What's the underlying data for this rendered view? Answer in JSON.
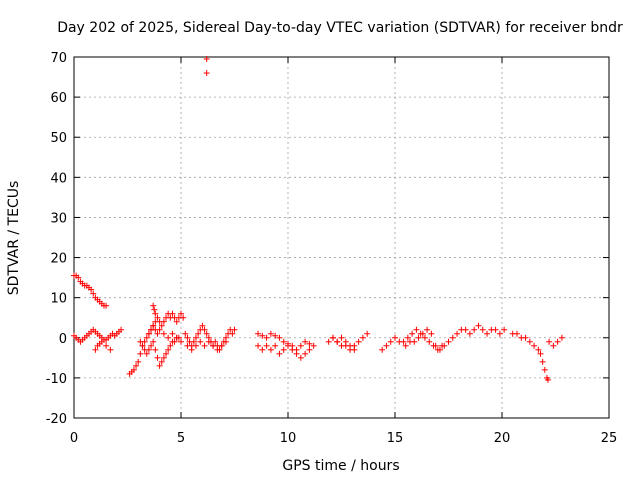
{
  "chart_data": {
    "type": "scatter",
    "title": "Day 202 of 2025, Sidereal Day-to-day VTEC variation (SDTVAR) for receiver bndr",
    "xlabel": "GPS time / hours",
    "ylabel": "SDTVAR / TECUs",
    "xlim": [
      0,
      25
    ],
    "ylim": [
      -20,
      70
    ],
    "xticks": [
      0,
      5,
      10,
      15,
      20,
      25
    ],
    "yticks": [
      -20,
      -10,
      0,
      10,
      20,
      30,
      40,
      50,
      60,
      70
    ],
    "grid": true,
    "marker": "plus",
    "color": "#ff0000",
    "series": [
      {
        "name": "bndr",
        "x": [
          0.0,
          0.1,
          0.2,
          0.3,
          0.4,
          0.5,
          0.6,
          0.7,
          0.8,
          0.9,
          1.0,
          1.1,
          1.2,
          1.3,
          1.4,
          1.5,
          0.0,
          0.1,
          0.2,
          0.3,
          0.4,
          0.5,
          0.6,
          0.7,
          0.8,
          0.9,
          1.0,
          1.1,
          1.2,
          1.3,
          1.4,
          1.5,
          1.6,
          1.7,
          1.8,
          1.9,
          2.0,
          2.1,
          2.2,
          1.0,
          1.1,
          1.2,
          1.3,
          1.5,
          1.7,
          2.6,
          2.7,
          2.8,
          2.9,
          3.0,
          3.1,
          3.2,
          3.3,
          3.4,
          3.5,
          3.6,
          3.7,
          3.8,
          3.9,
          4.0,
          4.1,
          4.2,
          4.3,
          4.4,
          4.5,
          4.6,
          4.7,
          4.8,
          4.9,
          5.0,
          5.1,
          3.1,
          3.2,
          3.3,
          3.4,
          3.5,
          3.6,
          3.7,
          3.8,
          3.9,
          4.0,
          4.1,
          4.2,
          4.3,
          4.4,
          4.5,
          4.6,
          4.7,
          4.8,
          4.9,
          5.0,
          3.5,
          3.6,
          3.7,
          3.8,
          3.9,
          4.0,
          4.2,
          4.4,
          4.6,
          4.8,
          3.7,
          3.75,
          3.8,
          5.2,
          5.3,
          5.4,
          5.5,
          5.6,
          5.7,
          5.8,
          5.9,
          6.0,
          6.1,
          6.2,
          6.3,
          6.4,
          6.5,
          6.6,
          6.7,
          6.8,
          6.9,
          7.0,
          7.1,
          7.2,
          7.3,
          7.4,
          7.5,
          5.3,
          5.5,
          5.7,
          5.9,
          6.1,
          6.3,
          6.5,
          6.7,
          6.9,
          7.1,
          6.2,
          6.2,
          8.6,
          8.8,
          9.0,
          9.2,
          9.4,
          9.6,
          9.8,
          10.0,
          10.2,
          10.4,
          10.6,
          10.8,
          11.0,
          11.2,
          8.6,
          8.8,
          9.0,
          9.2,
          9.4,
          9.6,
          9.8,
          10.0,
          10.2,
          10.4,
          10.6,
          10.8,
          11.0,
          11.9,
          12.1,
          12.3,
          12.5,
          12.7,
          12.9,
          13.1,
          13.3,
          13.5,
          13.7,
          12.1,
          12.3,
          12.5,
          12.7,
          12.9,
          13.1,
          14.4,
          14.6,
          14.8,
          15.0,
          15.2,
          15.4,
          15.6,
          15.8,
          16.0,
          16.2,
          16.4,
          16.6,
          16.8,
          17.0,
          17.2,
          15.5,
          15.7,
          15.9,
          16.1,
          16.3,
          16.5,
          16.7,
          16.9,
          17.1,
          17.3,
          17.5,
          17.7,
          17.9,
          18.1,
          18.3,
          18.5,
          18.7,
          18.9,
          19.1,
          19.3,
          19.5,
          19.7,
          19.9,
          20.1,
          20.5,
          20.7,
          20.9,
          21.1,
          21.3,
          21.5,
          21.7,
          21.8,
          21.9,
          22.0,
          22.1,
          22.15,
          22.2,
          22.4,
          22.6,
          22.8
        ],
        "y": [
          15.5,
          15.5,
          15,
          14,
          13.5,
          13,
          13,
          12.5,
          12,
          11,
          10,
          9.5,
          9,
          8.5,
          8,
          8,
          0.5,
          0,
          -0.5,
          -1,
          -0.5,
          0,
          0.5,
          1,
          1.5,
          2,
          1.5,
          1,
          0.5,
          0,
          -0.5,
          -0.5,
          0,
          0.5,
          1,
          0.5,
          1,
          1.5,
          2,
          -3,
          -2,
          -1.5,
          -1,
          -2,
          -3,
          -9,
          -8.5,
          -8,
          -7,
          -6,
          -4,
          -2,
          -1,
          0,
          1,
          2,
          3,
          4,
          5,
          4,
          3,
          4,
          5,
          6,
          5,
          6,
          5,
          4,
          5,
          6,
          5,
          -1,
          -2,
          -3,
          -4,
          -3,
          -2,
          -1,
          -3,
          -5,
          -7,
          -6,
          -5,
          -4,
          -3,
          -2,
          -1,
          -1,
          0,
          0,
          -1,
          1,
          2,
          3,
          2,
          1,
          2,
          1,
          0,
          1,
          0,
          8,
          7,
          6,
          1,
          0,
          -1,
          -2,
          -1,
          0,
          1,
          2,
          3,
          2,
          1,
          0,
          -1,
          -2,
          -1,
          -2,
          -3,
          -2,
          -1,
          0,
          1,
          2,
          1,
          2,
          -2,
          -3,
          -2,
          -1,
          -2,
          -1,
          -2,
          -3,
          -2,
          -1,
          69.5,
          66,
          1,
          0.5,
          0,
          1,
          0.5,
          0,
          -1,
          -1.5,
          -2,
          -3,
          -2,
          -1,
          -1.5,
          -2,
          -2,
          -3,
          -2,
          -3,
          -2,
          -4,
          -3,
          -2,
          -3,
          -4,
          -5,
          -4,
          -3,
          -1,
          0,
          -1,
          -2,
          -1,
          -2,
          -3,
          -1,
          0,
          1,
          0,
          -1,
          0,
          -2,
          -3,
          -2,
          -3,
          -2,
          -1,
          0,
          -1,
          -1,
          0,
          1,
          2,
          1,
          0,
          -1,
          -2,
          -3,
          -2,
          -2,
          -1,
          -1,
          0,
          1,
          2,
          1,
          -2,
          -3,
          -2,
          -1,
          0,
          1,
          2,
          2,
          1,
          2,
          3,
          2,
          1,
          2,
          2,
          1,
          2,
          1,
          1,
          0,
          0,
          -1,
          -2,
          -3,
          -4,
          -6,
          -8,
          -10,
          -10.5,
          -1,
          -2,
          -1,
          0
        ]
      }
    ]
  }
}
